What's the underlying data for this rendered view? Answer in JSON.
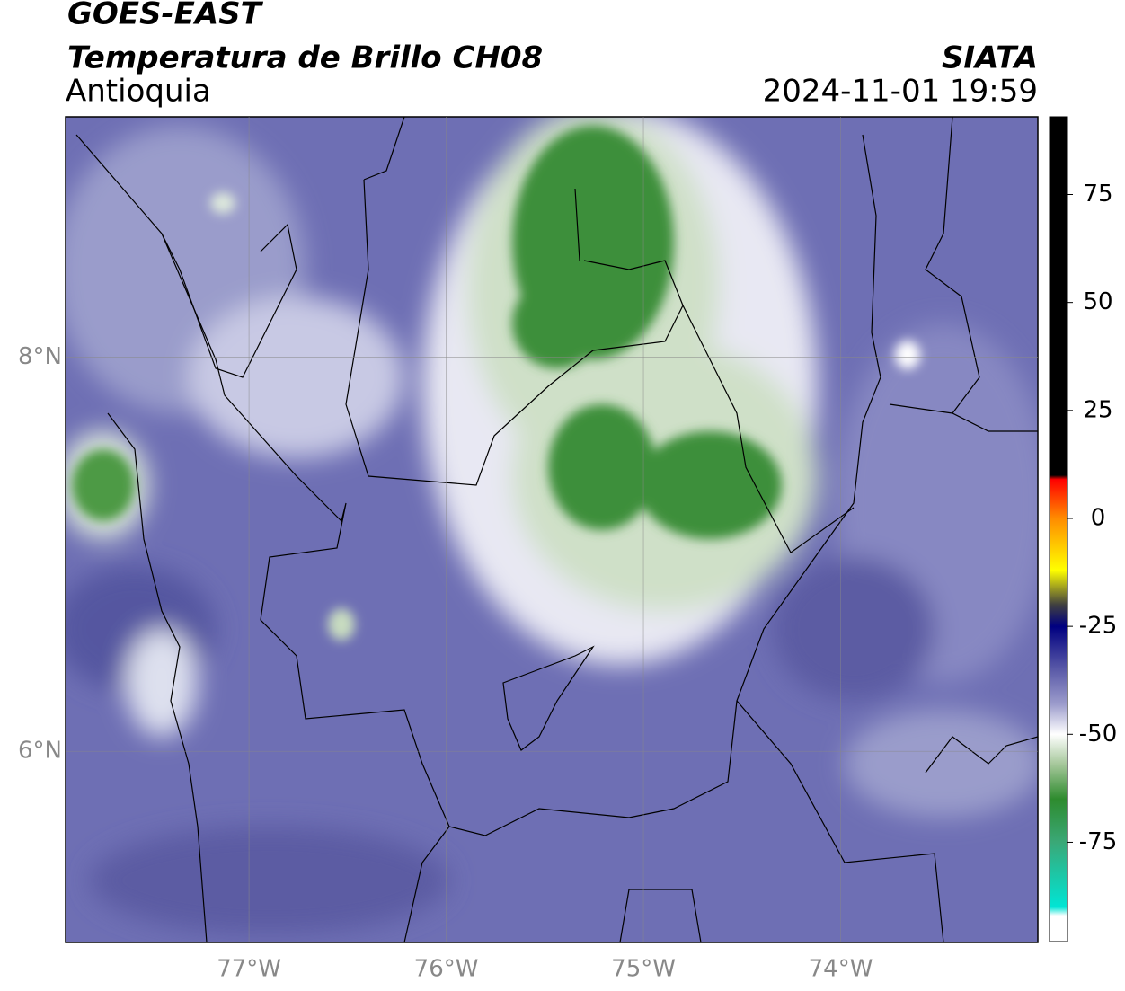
{
  "header": {
    "satellite": "GOES-EAST",
    "product": "Temperatura de Brillo CH08",
    "region": "Antioquia",
    "source": "SIATA",
    "datetime": "2024-11-01 19:59"
  },
  "map": {
    "lonlim": [
      -77.93,
      -73.0
    ],
    "latlim": [
      5.03,
      9.22
    ],
    "lon_ticks": [
      {
        "value": -77,
        "label": "77°W"
      },
      {
        "value": -76,
        "label": "76°W"
      },
      {
        "value": -75,
        "label": "75°W"
      },
      {
        "value": -74,
        "label": "74°W"
      }
    ],
    "lat_ticks": [
      {
        "value": 8,
        "label": "8°N"
      },
      {
        "value": 6,
        "label": "6°N"
      }
    ],
    "grid": true
  },
  "colorbar": {
    "lim": [
      -98,
      93
    ],
    "ticks": [
      75,
      50,
      25,
      0,
      -25,
      -50,
      -75
    ],
    "stops": [
      {
        "value": 93,
        "color": "#000000"
      },
      {
        "value": 10,
        "color": "#000000"
      },
      {
        "value": 9,
        "color": "#ff0000"
      },
      {
        "value": 0,
        "color": "#ff8c00"
      },
      {
        "value": -12,
        "color": "#ffff00"
      },
      {
        "value": -20,
        "color": "#404040"
      },
      {
        "value": -25,
        "color": "#000080"
      },
      {
        "value": -35,
        "color": "#5a5aa8"
      },
      {
        "value": -43,
        "color": "#9c9ccc"
      },
      {
        "value": -50,
        "color": "#ffffff"
      },
      {
        "value": -57,
        "color": "#a5c79a"
      },
      {
        "value": -65,
        "color": "#2e8b2e"
      },
      {
        "value": -75,
        "color": "#3aa877"
      },
      {
        "value": -90,
        "color": "#00e5d5"
      },
      {
        "value": -92,
        "color": "#ffffff"
      },
      {
        "value": -98,
        "color": "#ffffff"
      }
    ]
  }
}
